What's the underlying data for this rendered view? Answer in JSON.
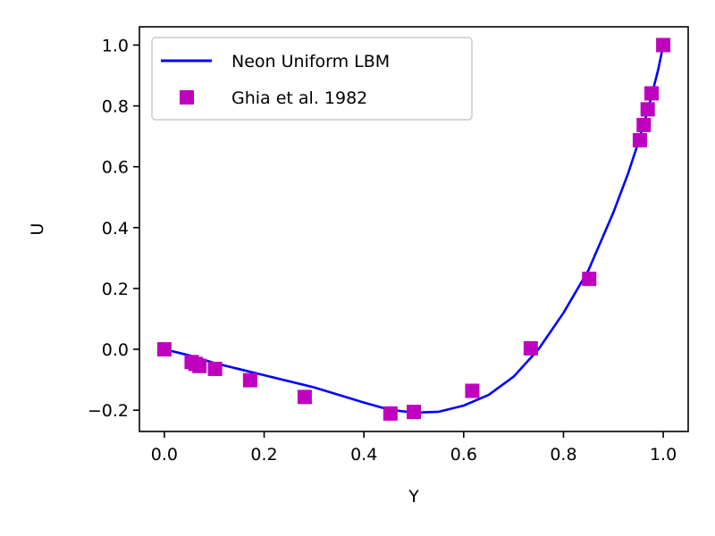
{
  "chart_data": {
    "type": "line",
    "xlabel": "Y",
    "ylabel": "U",
    "xlim": [
      -0.05,
      1.05
    ],
    "ylim": [
      -0.27,
      1.06
    ],
    "xticks": [
      0.0,
      0.2,
      0.4,
      0.6,
      0.8,
      1.0
    ],
    "xtick_labels": [
      "0.0",
      "0.2",
      "0.4",
      "0.6",
      "0.8",
      "1.0"
    ],
    "yticks": [
      -0.2,
      0.0,
      0.2,
      0.4,
      0.6,
      0.8,
      1.0
    ],
    "ytick_labels": [
      "−0.2",
      "0.0",
      "0.2",
      "0.4",
      "0.6",
      "0.8",
      "1.0"
    ],
    "grid": false,
    "legend_position": "top-left",
    "series": [
      {
        "name": "Neon Uniform LBM",
        "kind": "line",
        "color": "#0000ff",
        "x": [
          0.0,
          0.05,
          0.1,
          0.15,
          0.2,
          0.25,
          0.3,
          0.35,
          0.4,
          0.45,
          0.5,
          0.55,
          0.6,
          0.65,
          0.7,
          0.75,
          0.8,
          0.85,
          0.9,
          0.93,
          0.95,
          0.97,
          0.99,
          1.0
        ],
        "y": [
          0.0,
          -0.02,
          -0.045,
          -0.065,
          -0.085,
          -0.105,
          -0.125,
          -0.15,
          -0.175,
          -0.198,
          -0.208,
          -0.205,
          -0.185,
          -0.15,
          -0.09,
          0.0,
          0.12,
          0.26,
          0.45,
          0.58,
          0.68,
          0.79,
          0.92,
          1.0
        ]
      },
      {
        "name": "Ghia et al. 1982",
        "kind": "scatter",
        "marker": "square",
        "color": "#bf00bf",
        "x": [
          0.0,
          0.0547,
          0.0625,
          0.0703,
          0.1016,
          0.1719,
          0.2813,
          0.4531,
          0.5,
          0.6172,
          0.7344,
          0.8516,
          0.9531,
          0.9609,
          0.9688,
          0.9766,
          1.0
        ],
        "y": [
          0.0,
          -0.0419,
          -0.0478,
          -0.0548,
          -0.0643,
          -0.1015,
          -0.1566,
          -0.2109,
          -0.2058,
          -0.1364,
          0.0033,
          0.2315,
          0.6872,
          0.7372,
          0.7887,
          0.8412,
          1.0
        ]
      }
    ]
  }
}
